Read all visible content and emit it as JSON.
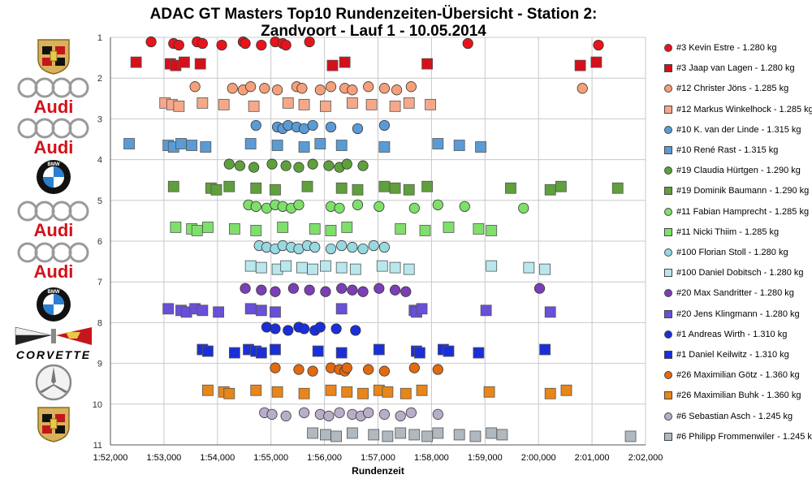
{
  "page": {
    "title_line1": "ADAC GT Masters Top10 Rundenzeiten-Übersicht - Station 2:",
    "title_line2": "Zandvoort - Lauf 1 - 10.05.2014"
  },
  "logos": [
    {
      "name": "porsche-logo",
      "brand": "Porsche"
    },
    {
      "name": "audi-logo",
      "brand": "Audi",
      "text": "Audi"
    },
    {
      "name": "audi-logo",
      "brand": "Audi",
      "text": "Audi"
    },
    {
      "name": "bmw-logo",
      "brand": "BMW",
      "text": "BMW"
    },
    {
      "name": "audi-logo",
      "brand": "Audi",
      "text": "Audi"
    },
    {
      "name": "audi-logo",
      "brand": "Audi",
      "text": "Audi"
    },
    {
      "name": "bmw-logo",
      "brand": "BMW",
      "text": "BMW"
    },
    {
      "name": "corvette-logo",
      "brand": "Corvette",
      "text": "CORVETTE"
    },
    {
      "name": "mercedes-logo",
      "brand": "Mercedes"
    },
    {
      "name": "porsche-logo",
      "brand": "Porsche"
    }
  ],
  "chart_data": {
    "type": "scatter",
    "xlabel": "Rundenzeit",
    "ylabel": "",
    "xlim": [
      112,
      122
    ],
    "ylim": [
      1,
      11
    ],
    "x_ticks": [
      "1:52,000",
      "1:53,000",
      "1:54,000",
      "1:55,000",
      "1:56,000",
      "1:57,000",
      "1:58,000",
      "1:59,000",
      "2:00,000",
      "2:01,000",
      "2:02,000"
    ],
    "y_ticks": [
      "1",
      "2",
      "3",
      "4",
      "5",
      "6",
      "7",
      "8",
      "9",
      "10",
      "11"
    ],
    "y_inverted": true,
    "grid": true,
    "legend_position": "right",
    "series": [
      {
        "name": "#3 Kevin Estre - 1.280 kg",
        "marker": "circle",
        "color": "#e8141b",
        "y": 1.15,
        "x": [
          112.76,
          113.18,
          113.28,
          113.62,
          113.72,
          114.08,
          114.48,
          114.52,
          114.82,
          115.08,
          115.22,
          115.28,
          115.72,
          118.68,
          121.12
        ]
      },
      {
        "name": "#3 Jaap van Lagen - 1.280 kg",
        "marker": "square",
        "color": "#d4101a",
        "y": 1.65,
        "x": [
          112.48,
          113.12,
          113.22,
          113.38,
          113.68,
          116.15,
          116.38,
          117.92,
          120.78,
          121.08
        ]
      },
      {
        "name": "#12 Christer Jöns - 1.285 kg",
        "marker": "circle",
        "color": "#f5a07a",
        "y": 2.25,
        "x": [
          113.58,
          114.28,
          114.48,
          114.62,
          114.88,
          115.12,
          115.48,
          115.58,
          115.92,
          116.12,
          116.38,
          116.52,
          116.82,
          117.12,
          117.35,
          117.62,
          120.82
        ]
      },
      {
        "name": "#12 Markus Winkelhock - 1.285 kg",
        "marker": "square",
        "color": "#f5a88a",
        "y": 2.65,
        "x": [
          113.02,
          113.15,
          113.28,
          113.72,
          114.12,
          114.68,
          115.32,
          115.62,
          116.02,
          116.52,
          116.88,
          117.32,
          117.58,
          117.98
        ]
      },
      {
        "name": "#10 K. van der Linde - 1.315 kg",
        "marker": "circle",
        "color": "#5b9bd5",
        "y": 3.2,
        "x": [
          114.72,
          115.12,
          115.22,
          115.32,
          115.48,
          115.62,
          115.78,
          116.12,
          116.62,
          117.12
        ]
      },
      {
        "name": "#10 René Rast - 1.315 kg",
        "marker": "square",
        "color": "#5b9bd5",
        "y": 3.65,
        "x": [
          112.35,
          113.08,
          113.18,
          113.32,
          113.52,
          113.78,
          114.62,
          115.12,
          115.62,
          115.92,
          116.32,
          117.12,
          118.12,
          118.52,
          118.92
        ]
      },
      {
        "name": "#19 Claudia Hürtgen - 1.290 kg",
        "marker": "circle",
        "color": "#5fa03c",
        "y": 4.15,
        "x": [
          114.22,
          114.42,
          114.68,
          115.02,
          115.28,
          115.52,
          115.78,
          116.08,
          116.28,
          116.42,
          116.72
        ]
      },
      {
        "name": "#19 Dominik Baumann - 1.290 kg",
        "marker": "square",
        "color": "#5fa03c",
        "y": 4.7,
        "x": [
          113.18,
          113.88,
          113.98,
          114.22,
          114.72,
          115.08,
          115.68,
          116.32,
          116.62,
          117.12,
          117.32,
          117.58,
          117.92,
          119.48,
          120.22,
          120.42,
          121.48
        ]
      },
      {
        "name": "#11 Fabian Hamprecht - 1.285 kg",
        "marker": "circle",
        "color": "#7ee06a",
        "y": 5.15,
        "x": [
          114.58,
          114.72,
          114.92,
          115.08,
          115.22,
          115.38,
          115.52,
          116.12,
          116.28,
          116.62,
          117.02,
          117.68,
          118.12,
          118.62,
          119.72
        ]
      },
      {
        "name": "#11 Nicki Thiim - 1.285 kg",
        "marker": "square",
        "color": "#7ee06a",
        "y": 5.7,
        "x": [
          113.22,
          113.52,
          113.62,
          113.82,
          114.32,
          114.72,
          115.22,
          115.82,
          116.12,
          116.42,
          117.42,
          117.88,
          118.32,
          118.88,
          119.12
        ]
      },
      {
        "name": "#100 Florian Stoll - 1.280 kg",
        "marker": "circle",
        "color": "#98d8e0",
        "y": 6.15,
        "x": [
          114.78,
          114.92,
          115.08,
          115.22,
          115.38,
          115.52,
          115.68,
          115.82,
          116.12,
          116.32,
          116.52,
          116.72,
          116.92,
          117.12
        ]
      },
      {
        "name": "#100 Daniel Dobitsch - 1.280 kg",
        "marker": "square",
        "color": "#b8e8ee",
        "y": 6.65,
        "x": [
          114.62,
          114.82,
          115.12,
          115.28,
          115.58,
          115.78,
          116.02,
          116.32,
          116.58,
          117.08,
          117.32,
          117.58,
          119.12,
          119.82,
          120.12
        ]
      },
      {
        "name": "#20 Max Sandritter - 1.280 kg",
        "marker": "circle",
        "color": "#7b3fb5",
        "y": 7.2,
        "x": [
          114.52,
          114.82,
          115.08,
          115.42,
          115.72,
          116.02,
          116.32,
          116.52,
          116.72,
          117.02,
          117.32,
          117.52,
          120.02
        ]
      },
      {
        "name": "#20 Jens Klingmann - 1.280 kg",
        "marker": "square",
        "color": "#6a4fd8",
        "y": 7.7,
        "x": [
          113.08,
          113.32,
          113.42,
          113.58,
          113.72,
          114.02,
          114.62,
          114.82,
          115.08,
          116.32,
          117.68,
          117.72,
          117.82,
          119.02,
          120.22
        ]
      },
      {
        "name": "#1 Andreas Wirth - 1.310 kg",
        "marker": "circle",
        "color": "#1a2fd8",
        "y": 8.15,
        "x": [
          114.92,
          115.08,
          115.32,
          115.52,
          115.62,
          115.82,
          115.92,
          116.22,
          116.58
        ]
      },
      {
        "name": "#1 Daniel Keilwitz - 1.310 kg",
        "marker": "square",
        "color": "#1a2fd8",
        "y": 8.7,
        "x": [
          113.72,
          113.82,
          114.32,
          114.58,
          114.72,
          114.82,
          115.08,
          115.88,
          116.32,
          117.02,
          117.72,
          117.78,
          118.22,
          118.32,
          118.88,
          120.12
        ]
      },
      {
        "name": "#26 Maximilian Götz - 1.360 kg",
        "marker": "circle",
        "color": "#e26a10",
        "y": 9.15,
        "x": [
          115.08,
          115.52,
          115.78,
          116.12,
          116.28,
          116.38,
          116.42,
          116.82,
          117.12,
          117.68,
          118.12
        ]
      },
      {
        "name": "#26 Maximilian Buhk - 1.360 kg",
        "marker": "square",
        "color": "#e8861a",
        "y": 9.7,
        "x": [
          113.82,
          114.12,
          114.22,
          114.72,
          115.12,
          115.62,
          116.12,
          116.42,
          116.72,
          117.02,
          117.18,
          117.52,
          117.82,
          119.08,
          120.22,
          120.52
        ]
      },
      {
        "name": "#6 Sebastian Asch - 1.245 kg",
        "marker": "circle",
        "color": "#b8aec8",
        "y": 10.25,
        "x": [
          114.88,
          115.02,
          115.28,
          115.62,
          115.92,
          116.08,
          116.28,
          116.52,
          116.68,
          116.82,
          117.12,
          117.42,
          117.62,
          118.12
        ]
      },
      {
        "name": "#6 Philipp Frommenwiler - 1.245 kg",
        "marker": "square",
        "color": "#b0b8c0",
        "y": 10.75,
        "x": [
          115.78,
          116.02,
          116.22,
          116.52,
          116.92,
          117.18,
          117.42,
          117.68,
          117.92,
          118.12,
          118.52,
          118.82,
          119.12,
          119.32,
          121.72
        ]
      }
    ]
  }
}
